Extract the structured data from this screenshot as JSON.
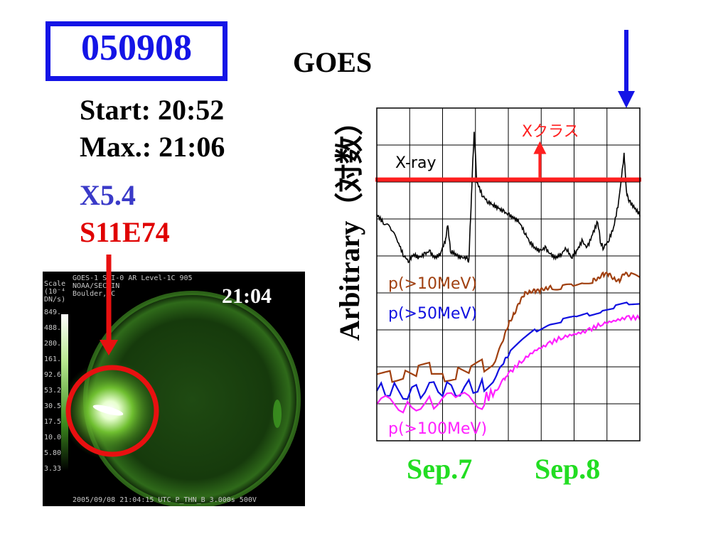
{
  "event": {
    "id": "050908",
    "start": "Start: 20:52",
    "max": "Max.: 21:06",
    "class": "X5.4",
    "location": "S11E74"
  },
  "colors": {
    "event_blue": "#1414e6",
    "class_blue": "#3a3ac8",
    "location_red": "#e00000",
    "threshold_red": "#ff2020",
    "date_green": "#22dd22",
    "xray": "#000000",
    "p10": "#a04010",
    "p50": "#1010e0",
    "p100": "#ff20ff"
  },
  "sxi": {
    "time_overlay": "21:04",
    "header_line1": "GOES-1    SXI-0  AR    Level-1C          905",
    "header_line2": "NOAA/SEC                                  IN",
    "header_line3": "Boulder, C",
    "footer": "2005/09/08 21:04:15 UTC  P_THN_B  3.000s  500V",
    "scale_title": [
      "Scale",
      "(10⁻⁴",
      "DN/s)"
    ],
    "scale_values": [
      "849.",
      "488.",
      "280.",
      "161.",
      "92.6",
      "53.2",
      "30.5",
      "17.5",
      "10.0",
      "5.80",
      "3.33"
    ]
  },
  "chart_data": {
    "type": "line",
    "title": "GOES",
    "ylabel": "Arbitrary（対数）",
    "x_labels": [
      "Sep.7",
      "Sep.8"
    ],
    "grid": true,
    "threshold": {
      "label": "Xクラス",
      "level": 0.785
    },
    "series": [
      {
        "name": "X-ray",
        "key": "xray",
        "points": [
          [
            0.0,
            0.68
          ],
          [
            0.02,
            0.66
          ],
          [
            0.05,
            0.64
          ],
          [
            0.08,
            0.6
          ],
          [
            0.1,
            0.56
          ],
          [
            0.12,
            0.54
          ],
          [
            0.14,
            0.56
          ],
          [
            0.16,
            0.55
          ],
          [
            0.18,
            0.56
          ],
          [
            0.2,
            0.57
          ],
          [
            0.22,
            0.55
          ],
          [
            0.24,
            0.56
          ],
          [
            0.26,
            0.6
          ],
          [
            0.27,
            0.65
          ],
          [
            0.28,
            0.57
          ],
          [
            0.3,
            0.56
          ],
          [
            0.32,
            0.55
          ],
          [
            0.34,
            0.55
          ],
          [
            0.35,
            0.54
          ],
          [
            0.36,
            0.74
          ],
          [
            0.37,
            0.93
          ],
          [
            0.38,
            0.78
          ],
          [
            0.4,
            0.74
          ],
          [
            0.42,
            0.72
          ],
          [
            0.44,
            0.71
          ],
          [
            0.46,
            0.7
          ],
          [
            0.48,
            0.69
          ],
          [
            0.5,
            0.68
          ],
          [
            0.52,
            0.67
          ],
          [
            0.54,
            0.66
          ],
          [
            0.56,
            0.63
          ],
          [
            0.58,
            0.6
          ],
          [
            0.6,
            0.58
          ],
          [
            0.62,
            0.57
          ],
          [
            0.64,
            0.58
          ],
          [
            0.66,
            0.56
          ],
          [
            0.68,
            0.55
          ],
          [
            0.7,
            0.56
          ],
          [
            0.72,
            0.58
          ],
          [
            0.74,
            0.55
          ],
          [
            0.76,
            0.57
          ],
          [
            0.78,
            0.6
          ],
          [
            0.8,
            0.58
          ],
          [
            0.82,
            0.62
          ],
          [
            0.84,
            0.66
          ],
          [
            0.85,
            0.6
          ],
          [
            0.86,
            0.58
          ],
          [
            0.88,
            0.6
          ],
          [
            0.9,
            0.64
          ],
          [
            0.92,
            0.72
          ],
          [
            0.94,
            0.86
          ],
          [
            0.95,
            0.74
          ],
          [
            0.96,
            0.72
          ],
          [
            0.98,
            0.7
          ],
          [
            1.0,
            0.68
          ]
        ]
      },
      {
        "name": "p(>10MeV)",
        "key": "p10",
        "points": [
          [
            0.0,
            0.2
          ],
          [
            0.05,
            0.2
          ],
          [
            0.1,
            0.21
          ],
          [
            0.15,
            0.2
          ],
          [
            0.2,
            0.21
          ],
          [
            0.25,
            0.2
          ],
          [
            0.3,
            0.21
          ],
          [
            0.35,
            0.2
          ],
          [
            0.4,
            0.22
          ],
          [
            0.45,
            0.24
          ],
          [
            0.48,
            0.3
          ],
          [
            0.5,
            0.35
          ],
          [
            0.52,
            0.38
          ],
          [
            0.54,
            0.41
          ],
          [
            0.56,
            0.44
          ],
          [
            0.58,
            0.45
          ],
          [
            0.6,
            0.45
          ],
          [
            0.62,
            0.45
          ],
          [
            0.64,
            0.46
          ],
          [
            0.66,
            0.46
          ],
          [
            0.7,
            0.46
          ],
          [
            0.74,
            0.47
          ],
          [
            0.78,
            0.47
          ],
          [
            0.82,
            0.48
          ],
          [
            0.84,
            0.49
          ],
          [
            0.86,
            0.5
          ],
          [
            0.88,
            0.5
          ],
          [
            0.9,
            0.49
          ],
          [
            0.92,
            0.48
          ],
          [
            0.94,
            0.5
          ],
          [
            0.96,
            0.5
          ],
          [
            1.0,
            0.49
          ]
        ]
      },
      {
        "name": "p(>50MeV)",
        "key": "p50",
        "points": [
          [
            0.0,
            0.15
          ],
          [
            0.1,
            0.15
          ],
          [
            0.2,
            0.15
          ],
          [
            0.3,
            0.16
          ],
          [
            0.4,
            0.16
          ],
          [
            0.45,
            0.19
          ],
          [
            0.48,
            0.23
          ],
          [
            0.5,
            0.26
          ],
          [
            0.55,
            0.3
          ],
          [
            0.6,
            0.33
          ],
          [
            0.65,
            0.35
          ],
          [
            0.7,
            0.36
          ],
          [
            0.75,
            0.37
          ],
          [
            0.8,
            0.38
          ],
          [
            0.85,
            0.39
          ],
          [
            0.9,
            0.4
          ],
          [
            0.95,
            0.41
          ],
          [
            1.0,
            0.41
          ]
        ]
      },
      {
        "name": "p(>100MeV)",
        "key": "p100",
        "points": [
          [
            0.0,
            0.11
          ],
          [
            0.1,
            0.11
          ],
          [
            0.2,
            0.12
          ],
          [
            0.3,
            0.12
          ],
          [
            0.4,
            0.12
          ],
          [
            0.45,
            0.15
          ],
          [
            0.48,
            0.18
          ],
          [
            0.5,
            0.2
          ],
          [
            0.55,
            0.24
          ],
          [
            0.6,
            0.27
          ],
          [
            0.65,
            0.29
          ],
          [
            0.7,
            0.31
          ],
          [
            0.75,
            0.32
          ],
          [
            0.8,
            0.33
          ],
          [
            0.85,
            0.35
          ],
          [
            0.9,
            0.36
          ],
          [
            0.95,
            0.37
          ],
          [
            1.0,
            0.37
          ]
        ]
      }
    ]
  }
}
